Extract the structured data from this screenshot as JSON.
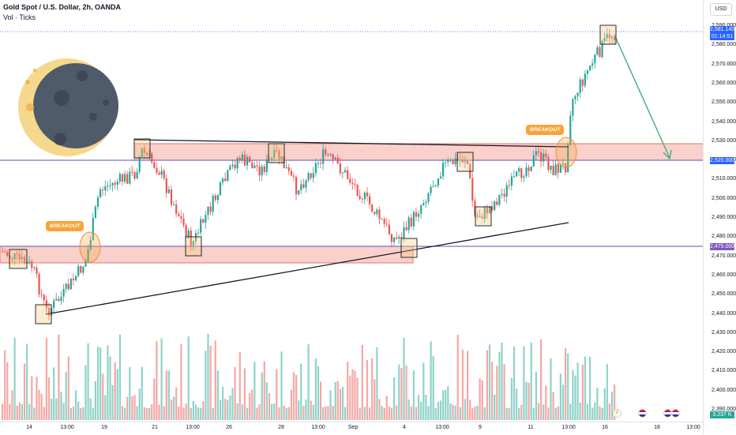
{
  "legend": {
    "symbol": "Gold Spot / U.S. Dollar, 2h, OANDA",
    "indicator": "Vol · Ticks"
  },
  "currency_button": "USD",
  "price_axis": {
    "ticks": [
      "2,590.000",
      "2,580.000",
      "2,570.000",
      "2,560.000",
      "2,550.000",
      "2,540.000",
      "2,530.000",
      "2,520.000",
      "2,510.000",
      "2,500.000",
      "2,490.000",
      "2,480.000",
      "2,470.000",
      "2,460.000",
      "2,450.000",
      "2,440.000",
      "2,430.000",
      "2,420.000",
      "2,410.000",
      "2,400.000",
      "2,390.000"
    ],
    "labels": [
      {
        "text": "2,581.140",
        "color": "#2962ff"
      },
      {
        "text": "01:14:51",
        "color": "#2962ff"
      },
      {
        "text": "2,520.000",
        "color": "#2962ff"
      },
      {
        "text": "2,475.000",
        "color": "#7e57c2"
      }
    ],
    "volume_label": "3.237 K"
  },
  "time_axis": [
    "14",
    "13:00",
    "19",
    "21",
    "13:00",
    "26",
    "28",
    "13:00",
    "Sep",
    "4",
    "13:00",
    "9",
    "11",
    "13:00",
    "16",
    "18",
    "13:00"
  ],
  "annotations": {
    "breakout_1": "BREAKOUT",
    "breakout_2": "BREAKOUT"
  },
  "colors": {
    "up": "#26a69a",
    "down": "#ef5350",
    "zone": "#f5a9a0",
    "zone_border": "#e57368",
    "resistance_line": "#5e4fbf",
    "trend": "#131722",
    "arrow": "#4caf86",
    "moon": "#4f5b6b",
    "moon_glow": "#f5d88b"
  },
  "chart_data": {
    "type": "candlestick",
    "ylim": [
      2385,
      2595
    ],
    "key_levels": [
      2520,
      2475
    ],
    "resistance_zone": [
      2520,
      2527
    ],
    "support_zone": [
      2466,
      2475
    ],
    "current_price": 2581.14
  },
  "events": [
    "lightning-icon",
    "flag-icon",
    "flag-icon",
    "flag-icon"
  ]
}
